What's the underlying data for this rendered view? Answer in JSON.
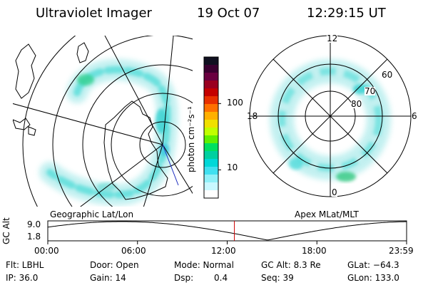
{
  "header": {
    "instrument": "Ultraviolet Imager",
    "date": "19 Oct 07",
    "time": "12:29:15 UT"
  },
  "geo_panel": {
    "caption": "Geographic Lat/Lon"
  },
  "apex_panel": {
    "caption": "Apex MLat/MLT",
    "mlt_labels": {
      "top": "12",
      "left": "18",
      "right": "6",
      "bottom": "0"
    },
    "mlat_labels": [
      "60",
      "70",
      "80"
    ]
  },
  "colorbar": {
    "label": "photon cm⁻²s⁻¹",
    "ticks": [
      "100",
      "10"
    ],
    "colors": [
      "#101020",
      "#3a0030",
      "#6a0040",
      "#9a0020",
      "#c40000",
      "#e83000",
      "#ff7000",
      "#ffb000",
      "#f0e000",
      "#c0ff00",
      "#60f000",
      "#00e060",
      "#00d0a0",
      "#00d8d8",
      "#40e0f0",
      "#90f0f8",
      "#c8f8ff",
      "#ffffff"
    ]
  },
  "timeline": {
    "axis_label": "GC Alt",
    "y_ticks": [
      "9.0",
      "1.8"
    ],
    "x_ticks": [
      "00:00",
      "06:00",
      "12:00",
      "18:00",
      "23:59"
    ],
    "current_time_fraction": 0.52,
    "marker_color": "#cc0000"
  },
  "info": {
    "row1": {
      "flt": "Flt: LBHL",
      "door": "Door: Open",
      "mode": "Mode: Normal",
      "gcalt": "GC Alt: 8.3 Re",
      "glat": "GLat: −64.3"
    },
    "row2": {
      "ip": "IP: 36.0",
      "gain": "Gain: 14",
      "dsp_label": "Dsp:",
      "dsp_value": "0.4",
      "seq": "Seq: 39",
      "glon": "GLon: 133.0"
    }
  },
  "colors": {
    "aurora_light": "#a8ecec",
    "aurora_mid": "#40dcd8",
    "aurora_strong": "#20c890"
  }
}
